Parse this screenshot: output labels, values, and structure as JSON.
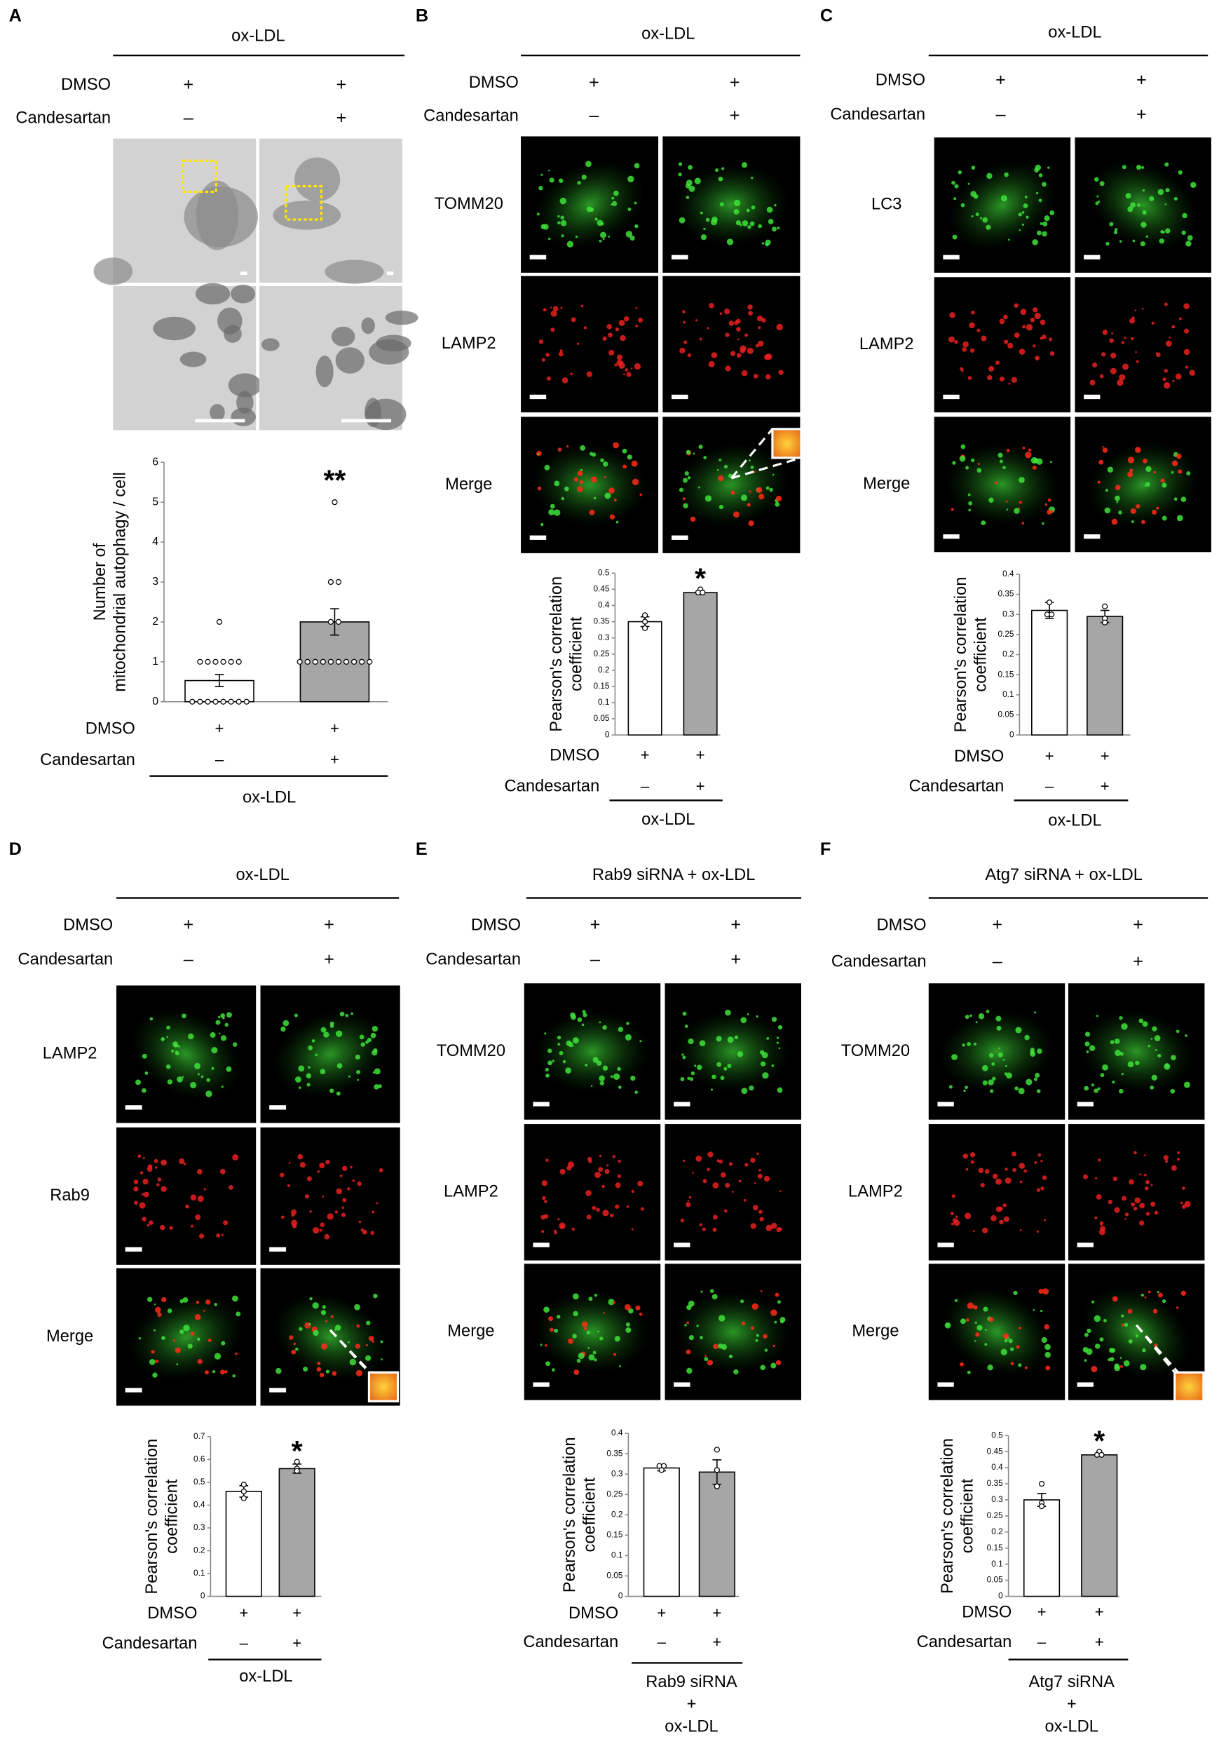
{
  "panels": [
    {
      "label": "A",
      "header": "ox-LDL",
      "treatment_labels": [
        "DMSO",
        "Candesartan"
      ],
      "treatment_signs": [
        [
          "+",
          "+"
        ],
        [
          "–",
          "+"
        ]
      ],
      "image_rows": []
    },
    {
      "label": "B",
      "header": "ox-LDL",
      "treatment_labels": [
        "DMSO",
        "Candesartan"
      ],
      "treatment_signs": [
        [
          "+",
          "+"
        ],
        [
          "–",
          "+"
        ]
      ],
      "image_rows": [
        "TOMM20",
        "LAMP2",
        "Merge"
      ]
    },
    {
      "label": "C",
      "header": "ox-LDL",
      "treatment_labels": [
        "DMSO",
        "Candesartan"
      ],
      "treatment_signs": [
        [
          "+",
          "+"
        ],
        [
          "–",
          "+"
        ]
      ],
      "image_rows": [
        "LC3",
        "LAMP2",
        "Merge"
      ]
    },
    {
      "label": "D",
      "header": "ox-LDL",
      "treatment_labels": [
        "DMSO",
        "Candesartan"
      ],
      "treatment_signs": [
        [
          "+",
          "+"
        ],
        [
          "–",
          "+"
        ]
      ],
      "image_rows": [
        "LAMP2",
        "Rab9",
        "Merge"
      ]
    },
    {
      "label": "E",
      "header": "Rab9 siRNA + ox-LDL",
      "treatment_labels": [
        "DMSO",
        "Candesartan"
      ],
      "treatment_signs": [
        [
          "+",
          "+"
        ],
        [
          "–",
          "+"
        ]
      ],
      "image_rows": [
        "TOMM20",
        "LAMP2",
        "Merge"
      ]
    },
    {
      "label": "F",
      "header": "Atg7 siRNA + ox-LDL",
      "treatment_labels": [
        "DMSO",
        "Candesartan"
      ],
      "treatment_signs": [
        [
          "+",
          "+"
        ],
        [
          "–",
          "+"
        ]
      ],
      "image_rows": [
        "TOMM20",
        "LAMP2",
        "Merge"
      ]
    }
  ],
  "chart_data": [
    {
      "type": "bar",
      "ylabel": [
        "Number of",
        "mitochondrial autophagy / cell"
      ],
      "ylim": [
        0,
        6
      ],
      "yticks": [
        0,
        1,
        2,
        3,
        4,
        5,
        6
      ],
      "values": [
        0.53,
        2.0
      ],
      "errors": [
        0.15,
        0.33
      ],
      "colors": [
        "#ffffff",
        "#a6a6a6"
      ],
      "points": [
        [
          2,
          1,
          1,
          1,
          1,
          1,
          1,
          0,
          0,
          0,
          0,
          0,
          0,
          0,
          0
        ],
        [
          5,
          3,
          3,
          2,
          2,
          1,
          1,
          1,
          1,
          1,
          1,
          1,
          1,
          1,
          1
        ]
      ],
      "value_annotations": [
        null,
        "**"
      ],
      "row_labels": [
        "DMSO",
        "Candesartan"
      ],
      "row_values": [
        [
          "+",
          "+"
        ],
        [
          "–",
          "+"
        ]
      ],
      "group_label": [
        "ox-LDL"
      ]
    },
    {
      "type": "bar",
      "ylabel": [
        "Pearson's correlation",
        "coefficient"
      ],
      "ylim": [
        0,
        0.5
      ],
      "yticks": [
        0,
        0.05,
        0.1,
        0.15,
        0.2,
        0.25,
        0.3,
        0.35,
        0.4,
        0.45,
        0.5
      ],
      "values": [
        0.35,
        0.44
      ],
      "errors": [
        0.015,
        0.005
      ],
      "colors": [
        "#ffffff",
        "#a6a6a6"
      ],
      "points": [
        [
          0.37,
          0.35,
          0.33
        ],
        [
          0.45,
          0.44,
          0.44
        ]
      ],
      "value_annotations": [
        null,
        "*"
      ],
      "row_labels": [
        "DMSO",
        "Candesartan"
      ],
      "row_values": [
        [
          "+",
          "+"
        ],
        [
          "–",
          "+"
        ]
      ],
      "group_label": [
        "ox-LDL"
      ]
    },
    {
      "type": "bar",
      "ylabel": [
        "Pearson's correlation",
        "coefficient"
      ],
      "ylim": [
        0,
        0.4
      ],
      "yticks": [
        0,
        0.05,
        0.1,
        0.15,
        0.2,
        0.25,
        0.3,
        0.35,
        0.4
      ],
      "values": [
        0.31,
        0.295
      ],
      "errors": [
        0.02,
        0.015
      ],
      "colors": [
        "#ffffff",
        "#a6a6a6"
      ],
      "points": [
        [
          0.33,
          0.3,
          0.3
        ],
        [
          0.32,
          0.29,
          0.28
        ]
      ],
      "value_annotations": [
        null,
        null
      ],
      "row_labels": [
        "DMSO",
        "Candesartan"
      ],
      "row_values": [
        [
          "+",
          "+"
        ],
        [
          "–",
          "+"
        ]
      ],
      "group_label": [
        "ox-LDL"
      ]
    },
    {
      "type": "bar",
      "ylabel": [
        "Pearson's correlation",
        "coefficient"
      ],
      "ylim": [
        0,
        0.7
      ],
      "yticks": [
        0,
        0.1,
        0.2,
        0.3,
        0.4,
        0.5,
        0.6,
        0.7
      ],
      "values": [
        0.46,
        0.56
      ],
      "errors": [
        0.025,
        0.02
      ],
      "colors": [
        "#ffffff",
        "#a6a6a6"
      ],
      "points": [
        [
          0.49,
          0.46,
          0.43
        ],
        [
          0.59,
          0.56,
          0.55
        ]
      ],
      "value_annotations": [
        null,
        "*"
      ],
      "row_labels": [
        "DMSO",
        "Candesartan"
      ],
      "row_values": [
        [
          "+",
          "+"
        ],
        [
          "–",
          "+"
        ]
      ],
      "group_label": [
        "ox-LDL"
      ]
    },
    {
      "type": "bar",
      "ylabel": [
        "Pearson's correlation",
        "coefficient"
      ],
      "ylim": [
        0,
        0.4
      ],
      "yticks": [
        0,
        0.05,
        0.1,
        0.15,
        0.2,
        0.25,
        0.3,
        0.35,
        0.4
      ],
      "values": [
        0.315,
        0.305
      ],
      "errors": [
        0.007,
        0.03
      ],
      "colors": [
        "#ffffff",
        "#a6a6a6"
      ],
      "points": [
        [
          0.32,
          0.32,
          0.31
        ],
        [
          0.36,
          0.31,
          0.27
        ]
      ],
      "value_annotations": [
        null,
        null
      ],
      "row_labels": [
        "DMSO",
        "Candesartan"
      ],
      "row_values": [
        [
          "+",
          "+"
        ],
        [
          "–",
          "+"
        ]
      ],
      "group_label": [
        "Rab9 siRNA",
        "+",
        "ox-LDL"
      ]
    },
    {
      "type": "bar",
      "ylabel": [
        "Pearson's correlation",
        "coefficient"
      ],
      "ylim": [
        0,
        0.5
      ],
      "yticks": [
        0,
        0.05,
        0.1,
        0.15,
        0.2,
        0.25,
        0.3,
        0.35,
        0.4,
        0.45,
        0.5
      ],
      "values": [
        0.3,
        0.44
      ],
      "errors": [
        0.02,
        0.005
      ],
      "colors": [
        "#ffffff",
        "#a6a6a6"
      ],
      "points": [
        [
          0.35,
          0.29,
          0.28
        ],
        [
          0.45,
          0.44,
          0.44
        ]
      ],
      "value_annotations": [
        null,
        "*"
      ],
      "row_labels": [
        "DMSO",
        "Candesartan"
      ],
      "row_values": [
        [
          "+",
          "+"
        ],
        [
          "–",
          "+"
        ]
      ],
      "group_label": [
        "Atg7 siRNA",
        "+",
        "ox-LDL"
      ]
    }
  ]
}
